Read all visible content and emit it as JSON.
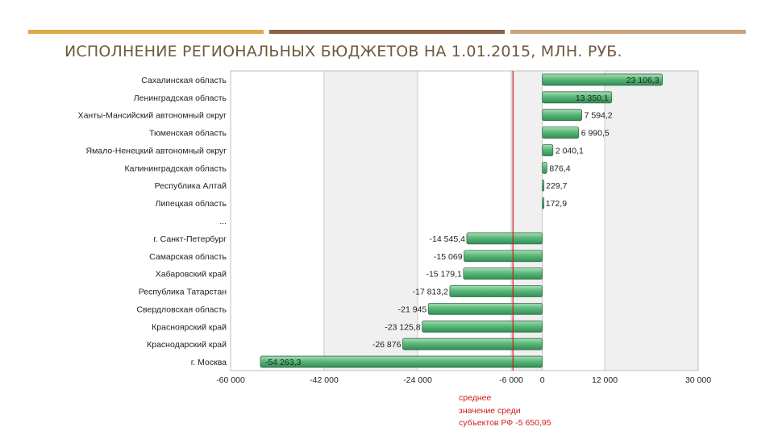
{
  "slide": {
    "title": "ИСПОЛНЕНИЕ РЕГИОНАЛЬНЫХ БЮДЖЕТОВ НА 1.01.2015, МЛН. РУБ.",
    "colors": {
      "bar_a": "#e0a84a",
      "bar_b": "#8a6244",
      "bar_c": "#c9a27c",
      "title": "#6f5a3e"
    }
  },
  "chart_data": {
    "type": "bar",
    "orientation": "horizontal",
    "title": "",
    "xlabel": "",
    "ylabel": "",
    "xlim": [
      -60000,
      30000
    ],
    "grid": true,
    "legend": "none",
    "bar_color": "#5cb87a",
    "categories": [
      "Сахалинская область",
      "Ленинградская область",
      "Ханты-Мансийский автономный округ",
      "Тюменская область",
      "Ямало-Ненецкий автономный округ",
      "Калининградская область",
      "Республика Алтай",
      "Липецкая область",
      "...",
      "г. Санкт-Петербург",
      "Самарская область",
      "Хабаровский край",
      "Республика Татарстан",
      "Свердловская область",
      "Красноярский край",
      "Краснодарский край",
      "г. Москва"
    ],
    "values": [
      23106.3,
      13350.1,
      7594.2,
      6990.5,
      2040.1,
      876.4,
      229.7,
      172.9,
      null,
      -14545.4,
      -15069,
      -15179.1,
      -17813.2,
      -21945,
      -23125.8,
      -26876,
      -54263.3
    ],
    "value_labels": [
      "23 106,3",
      "13 350,1",
      "7 594,2",
      "6 990,5",
      "2 040,1",
      "876,4",
      "229,7",
      "172,9",
      "",
      "-14 545,4",
      "-15 069",
      "-15 179,1",
      "-17 813,2",
      "-21 945",
      "-23 125,8",
      "-26 876",
      "-54 263,3"
    ],
    "ticks": [
      -60000,
      -42000,
      -24000,
      -6000,
      0,
      12000,
      30000
    ],
    "tick_labels": [
      "-60 000",
      "-42 000",
      "-24 000",
      "-6 000",
      "0",
      "12 000",
      "30 000"
    ],
    "reference_line": {
      "value": -5650.95,
      "color": "#cc1d1d",
      "annotation": [
        "среднее",
        "значение среди",
        "субъектов РФ -5 650,95"
      ]
    }
  }
}
